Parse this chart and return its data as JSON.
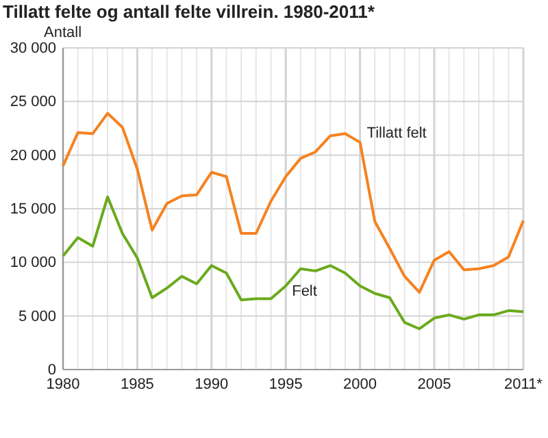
{
  "chart_data": {
    "type": "line",
    "title": "Tillatt felte og antall felte villrein. 1980-2011*",
    "ylabel": "Antall",
    "x": [
      1980,
      1981,
      1982,
      1983,
      1984,
      1985,
      1986,
      1987,
      1988,
      1989,
      1990,
      1991,
      1992,
      1993,
      1994,
      1995,
      1996,
      1997,
      1998,
      1999,
      2000,
      2001,
      2002,
      2003,
      2004,
      2005,
      2006,
      2007,
      2008,
      2009,
      2010,
      2011
    ],
    "series": [
      {
        "name": "Tillatt felt",
        "color": "#f58220",
        "values": [
          19000,
          22100,
          22000,
          23900,
          22600,
          18700,
          13000,
          15500,
          16200,
          16300,
          18400,
          18000,
          12700,
          12700,
          15700,
          18000,
          19700,
          20300,
          21800,
          22000,
          21200,
          13800,
          11300,
          8700,
          7200,
          10200,
          11000,
          9300,
          9400,
          9700,
          10500,
          13900
        ]
      },
      {
        "name": "Felt",
        "color": "#6aaa1e",
        "values": [
          10600,
          12300,
          11500,
          16100,
          12700,
          10400,
          6700,
          7600,
          8700,
          8000,
          9700,
          9000,
          6500,
          6600,
          6600,
          7800,
          9400,
          9200,
          9700,
          9000,
          7800,
          7100,
          6700,
          4400,
          3800,
          4800,
          5100,
          4700,
          5100,
          5100,
          5500,
          5400
        ]
      }
    ],
    "xlim": [
      1980,
      2011
    ],
    "xticks": [
      1980,
      1985,
      1990,
      1995,
      2000,
      2005,
      {
        "value": 2011,
        "label": "2011*"
      }
    ],
    "ylim": [
      0,
      30000
    ],
    "yticks": [
      {
        "value": 0,
        "label": "0"
      },
      {
        "value": 5000,
        "label": "5 000"
      },
      {
        "value": 10000,
        "label": "10 000"
      },
      {
        "value": 15000,
        "label": "15 000"
      },
      {
        "value": 20000,
        "label": "20 000"
      },
      {
        "value": 25000,
        "label": "25 000"
      },
      {
        "value": 30000,
        "label": "30 000"
      }
    ],
    "grid": true,
    "marker": "none",
    "line_style": "solid"
  }
}
